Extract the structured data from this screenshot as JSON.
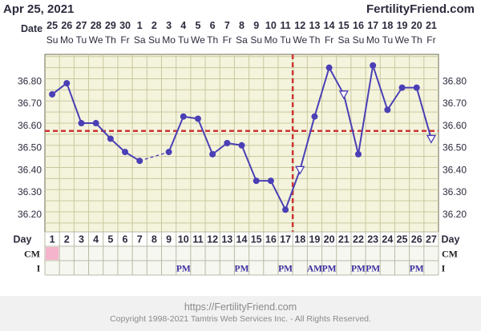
{
  "header": {
    "date": "Apr 25, 2021",
    "brand": "FertilityFriend.com",
    "date_label": "Date"
  },
  "dates": [
    "25",
    "26",
    "27",
    "28",
    "29",
    "30",
    "1",
    "2",
    "3",
    "4",
    "5",
    "6",
    "7",
    "8",
    "9",
    "10",
    "11",
    "12",
    "13",
    "14",
    "15",
    "16",
    "17",
    "18",
    "19",
    "20",
    "21"
  ],
  "weekdays": [
    "Su",
    "Mo",
    "Tu",
    "We",
    "Th",
    "Fr",
    "Sa",
    "Su",
    "Mo",
    "Tu",
    "We",
    "Th",
    "Fr",
    "Sa",
    "Su",
    "Mo",
    "Tu",
    "We",
    "Th",
    "Fr",
    "Sa",
    "Su",
    "Mo",
    "Tu",
    "We",
    "Th",
    "Fr"
  ],
  "rows": {
    "day_label": "Day",
    "cm_label": "CM",
    "i_label": "I"
  },
  "intercourse": [
    {
      "day": 10,
      "text": "PM"
    },
    {
      "day": 14,
      "text": "PM"
    },
    {
      "day": 17,
      "text": "PM"
    },
    {
      "day": 19,
      "text": "AM"
    },
    {
      "day": 20,
      "text": "PM"
    },
    {
      "day": 22,
      "text": "PM"
    },
    {
      "day": 23,
      "text": "PM"
    },
    {
      "day": 26,
      "text": "PM"
    }
  ],
  "colors": {
    "line": "#4a3fb5",
    "grid": "#c9c7a0",
    "plot_bg": "#f4f4dc",
    "coverline": "#cc3333",
    "cm_highlight": "#f5b4cb",
    "row_bg": "#f7f7f2"
  },
  "footer": {
    "url": "https://FertilityFriend.com",
    "copyright": "Copyright 1998-2021 Tamtris Web Services Inc. - All Rights Reserved."
  },
  "chart_data": {
    "type": "line",
    "title": "",
    "xlabel": "",
    "ylabel": "",
    "x": [
      1,
      2,
      3,
      4,
      5,
      6,
      7,
      8,
      9,
      10,
      11,
      12,
      13,
      14,
      15,
      16,
      17,
      18,
      19,
      20,
      21,
      22,
      23,
      24,
      25,
      26,
      27
    ],
    "series": [
      {
        "values": [
          36.74,
          36.79,
          36.61,
          36.61,
          36.54,
          36.48,
          36.44,
          null,
          36.48,
          36.64,
          36.63,
          36.47,
          36.52,
          36.51,
          36.35,
          36.35,
          36.22,
          36.4,
          36.64,
          36.86,
          36.74,
          36.47,
          36.87,
          36.67,
          36.77,
          36.77,
          36.54
        ],
        "open_markers": [
          18,
          21,
          27
        ],
        "dashed_segments": [
          [
            7,
            9
          ]
        ]
      }
    ],
    "yticks": [
      "36.20",
      "36.30",
      "36.40",
      "36.50",
      "36.60",
      "36.70",
      "36.80"
    ],
    "ylim": [
      36.12,
      36.92
    ],
    "coverline": 36.575,
    "ovulation_day": 18,
    "cm_highlight_day": 1,
    "grid": true
  }
}
